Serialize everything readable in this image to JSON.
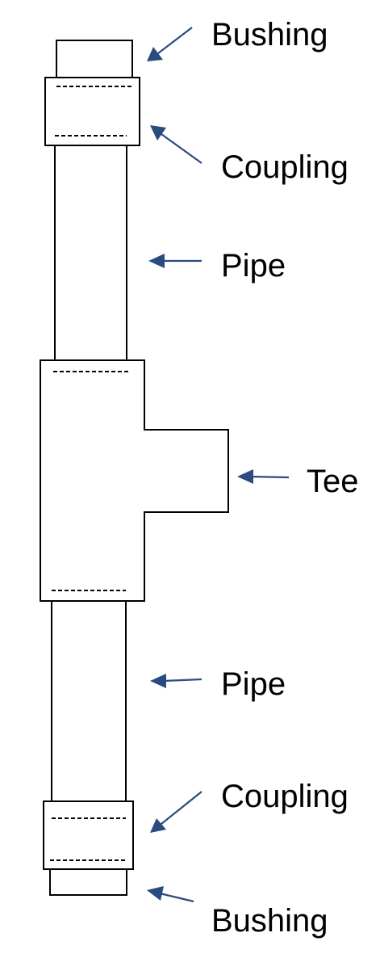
{
  "labels": {
    "bushing_top": "Bushing",
    "coupling_top": "Coupling",
    "pipe_top": "Pipe",
    "tee": "Tee",
    "pipe_bottom": "Pipe",
    "coupling_bottom": "Coupling",
    "bushing_bottom": "Bushing"
  },
  "colors": {
    "arrow": "#2b4a80",
    "outline": "#000000",
    "background": "#ffffff"
  }
}
